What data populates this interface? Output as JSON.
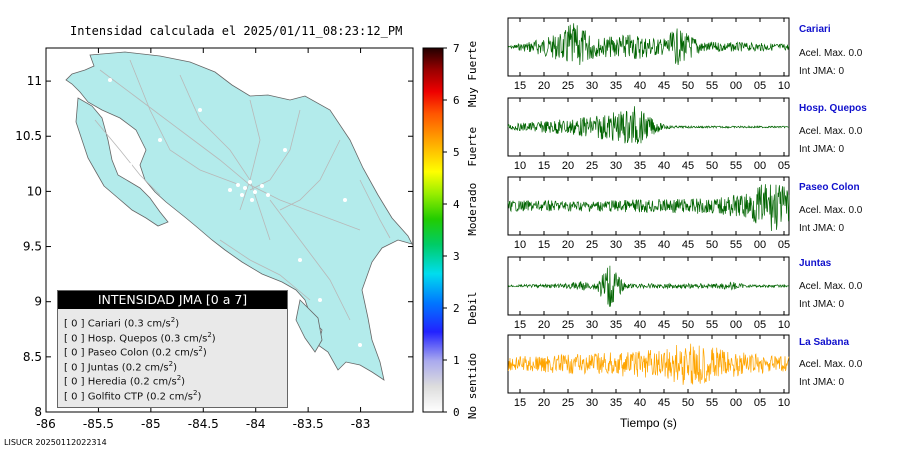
{
  "map": {
    "title": "Intensidad calculada el 2025/01/11_08:23:12_PM",
    "footer_code": "LISUCR 20250112022314",
    "x_ticks": [
      "-86",
      "-85.5",
      "-85",
      "-84.5",
      "-84",
      "-83.5",
      "-83"
    ],
    "y_ticks": [
      "8",
      "8.5",
      "9",
      "9.5",
      "10",
      "10.5",
      "11"
    ],
    "land_color": "#b3ebeb",
    "legend": {
      "header": "INTENSIDAD JMA [0 a 7]",
      "items": [
        {
          "badge": "[ 0 ]",
          "name": "Cariari",
          "acc": "(0.3 cm/s",
          "sup": "2",
          "close": ")"
        },
        {
          "badge": "[ 0 ]",
          "name": "Hosp. Quepos",
          "acc": "(0.3 cm/s",
          "sup": "2",
          "close": ")"
        },
        {
          "badge": "[ 0 ]",
          "name": "Paseo Colon",
          "acc": "(0.2 cm/s",
          "sup": "2",
          "close": ")"
        },
        {
          "badge": "[ 0 ]",
          "name": "Juntas",
          "acc": "(0.2 cm/s",
          "sup": "2",
          "close": ")"
        },
        {
          "badge": "[ 0 ]",
          "name": "Heredia",
          "acc": "(0.2 cm/s",
          "sup": "2",
          "close": ")"
        },
        {
          "badge": "[ 0 ]",
          "name": "Golfito CTP",
          "acc": "(0.2 cm/s",
          "sup": "2",
          "close": ")"
        }
      ]
    }
  },
  "colorbar": {
    "ticks": [
      "0",
      "1",
      "2",
      "3",
      "4",
      "5",
      "6",
      "7"
    ],
    "category_labels": [
      "No sentido",
      "Debil",
      "Moderado",
      "Fuerte",
      "Muy Fuerte"
    ]
  },
  "traces_header": {
    "x_axis_label": "Tiempo (s)"
  },
  "chart_data": [
    {
      "type": "heatmap",
      "title": "Intensidad calculada el 2025/01/11_08:23:12_PM",
      "xlim": [
        -86,
        -82.5
      ],
      "ylim": [
        8,
        11.3
      ],
      "x_ticks": [
        -86,
        -85.5,
        -85,
        -84.5,
        -84,
        -83.5,
        -83
      ],
      "y_ticks": [
        8,
        8.5,
        9,
        9.5,
        10,
        10.5,
        11
      ],
      "colorbar": {
        "range": [
          0,
          7
        ],
        "labels": [
          "No sentido",
          "Debil",
          "Moderado",
          "Fuerte",
          "Muy Fuerte"
        ]
      },
      "stations": [
        {
          "name": "Cariari",
          "jma": 0,
          "pga_cm_s2": 0.3
        },
        {
          "name": "Hosp. Quepos",
          "jma": 0,
          "pga_cm_s2": 0.3
        },
        {
          "name": "Paseo Colon",
          "jma": 0,
          "pga_cm_s2": 0.2
        },
        {
          "name": "Juntas",
          "jma": 0,
          "pga_cm_s2": 0.2
        },
        {
          "name": "Heredia",
          "jma": 0,
          "pga_cm_s2": 0.2
        },
        {
          "name": "Golfito CTP",
          "jma": 0,
          "pga_cm_s2": 0.2
        }
      ]
    },
    {
      "type": "line",
      "xlabel": "Tiempo (s)",
      "series": [
        {
          "name": "Cariari",
          "color": "#006400",
          "tick_labels": [
            "15",
            "20",
            "25",
            "30",
            "35",
            "40",
            "45",
            "50",
            "55",
            "00",
            "05",
            "10"
          ],
          "max_label": "Acel. Max. 0.0",
          "jma_label": "Int JMA: 0"
        },
        {
          "name": "Hosp. Quepos",
          "color": "#006400",
          "tick_labels": [
            "10",
            "15",
            "20",
            "25",
            "30",
            "35",
            "40",
            "45",
            "50",
            "55",
            "00",
            "05"
          ],
          "max_label": "Acel. Max. 0.0",
          "jma_label": "Int JMA: 0"
        },
        {
          "name": "Paseo Colon",
          "color": "#006400",
          "tick_labels": [
            "10",
            "15",
            "20",
            "25",
            "30",
            "35",
            "40",
            "45",
            "50",
            "55",
            "00",
            "05"
          ],
          "max_label": "Acel. Max. 0.0",
          "jma_label": "Int JMA: 0"
        },
        {
          "name": "Juntas",
          "color": "#006400",
          "tick_labels": [
            "15",
            "20",
            "25",
            "30",
            "35",
            "40",
            "45",
            "50",
            "55",
            "00",
            "05",
            "10"
          ],
          "max_label": "Acel. Max. 0.0",
          "jma_label": "Int JMA: 0"
        },
        {
          "name": "La Sabana",
          "color": "#ffa500",
          "tick_labels": [
            "15",
            "20",
            "25",
            "30",
            "35",
            "40",
            "45",
            "50",
            "55",
            "00",
            "05",
            "10"
          ],
          "max_label": "Acel. Max. 0.0",
          "jma_label": "Int JMA: 0"
        }
      ]
    }
  ]
}
